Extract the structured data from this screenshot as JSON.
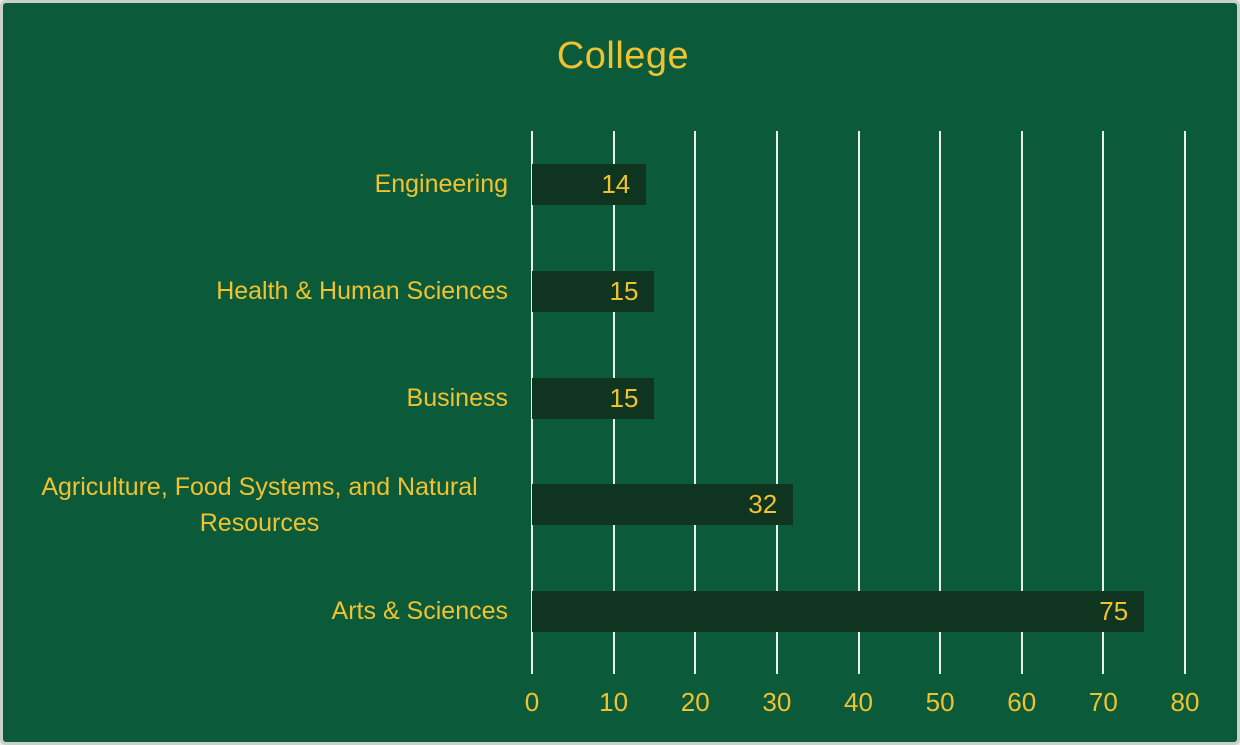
{
  "chart_data": {
    "type": "bar",
    "orientation": "horizontal",
    "title": "College",
    "categories": [
      "Engineering",
      "Health & Human Sciences",
      "Business",
      "Agriculture, Food Systems, and Natural Resources",
      "Arts & Sciences"
    ],
    "values": [
      14,
      15,
      15,
      32,
      75
    ],
    "xlabel": "",
    "ylabel": "",
    "xlim": [
      0,
      80
    ],
    "xticks": [
      0,
      10,
      20,
      30,
      40,
      50,
      60,
      70,
      80
    ],
    "grid": "vertical",
    "legend_position": "none",
    "value_labels": "inside-end",
    "colors": {
      "background": "#0B5B3B",
      "bar": "#0F3420",
      "text": "#F0C230",
      "gridline": "#E9EFEA",
      "card_border": "#C7D0CA"
    }
  }
}
